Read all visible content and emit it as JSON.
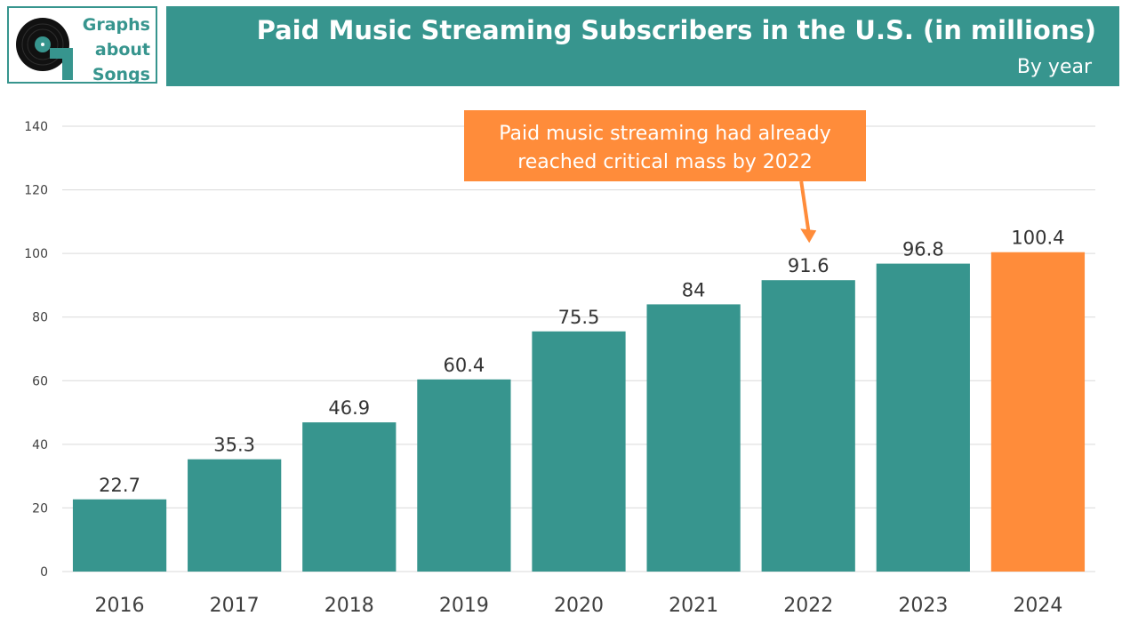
{
  "brand": {
    "lines": [
      "Graphs",
      "about",
      "Songs"
    ],
    "color": "#37958e"
  },
  "header": {
    "title": "Paid Music Streaming Subscribers in the U.S. (in millions)",
    "subtitle": "By year"
  },
  "annotation": {
    "lines": [
      "Paid music streaming had already",
      "reached critical mass by 2022"
    ],
    "color": "#ff8c3a",
    "target_category": "2022"
  },
  "colors": {
    "bar": "#37958e",
    "highlight": "#ff8c3a",
    "grid": "#d9d9d9",
    "axis_text": "#404040"
  },
  "chart_data": {
    "type": "bar",
    "title": "Paid Music Streaming Subscribers in the U.S. (in millions)",
    "subtitle": "By year",
    "xlabel": "",
    "ylabel": "",
    "categories": [
      "2016",
      "2017",
      "2018",
      "2019",
      "2020",
      "2021",
      "2022",
      "2023",
      "2024"
    ],
    "values": [
      22.7,
      35.3,
      46.9,
      60.4,
      75.5,
      84,
      91.6,
      96.8,
      100.4
    ],
    "value_labels": [
      "22.7",
      "35.3",
      "46.9",
      "60.4",
      "75.5",
      "84",
      "91.6",
      "96.8",
      "100.4"
    ],
    "highlight": [
      "2024"
    ],
    "ylim": [
      0,
      140
    ],
    "yticks": [
      0,
      20,
      40,
      60,
      80,
      100,
      120,
      140
    ],
    "grid": true,
    "legend": "none"
  }
}
